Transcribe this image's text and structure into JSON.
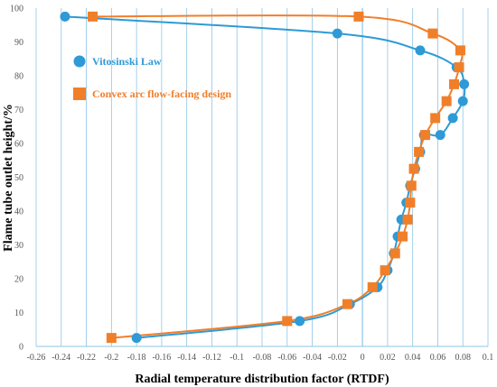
{
  "chart_data": {
    "type": "scatter",
    "title": "",
    "xlabel": "Radial temperature distribution factor (RTDF)",
    "ylabel": "Flame tube outlet height/%",
    "xlim": [
      -0.26,
      0.1
    ],
    "ylim": [
      0,
      100
    ],
    "x_ticks": [
      -0.26,
      -0.24,
      -0.22,
      -0.2,
      -0.18,
      -0.16,
      -0.14,
      -0.12,
      -0.1,
      -0.08,
      -0.06,
      -0.04,
      -0.02,
      0,
      0.02,
      0.04,
      0.06,
      0.08,
      0.1
    ],
    "x_tick_labels": [
      "-0.26",
      "-0.24",
      "-0.22",
      "-0.2",
      "-0.18",
      "-0.16",
      "-0.14",
      "-0.12",
      "-0.1",
      "-0.08",
      "-0.06",
      "-0.04",
      "-0.02",
      "0",
      "0.02",
      "0.04",
      "0.06",
      "0.08",
      "0.1"
    ],
    "y_ticks": [
      0,
      10,
      20,
      30,
      40,
      50,
      60,
      70,
      80,
      90,
      100
    ],
    "y_tick_labels": [
      "0",
      "10",
      "20",
      "30",
      "40",
      "50",
      "60",
      "70",
      "80",
      "90",
      "100"
    ],
    "grid": "vertical",
    "legend_position": "left",
    "series": [
      {
        "name": "Vitosinski Law",
        "marker": "circle",
        "color": "#2e9ad6",
        "x": [
          -0.18,
          -0.05,
          -0.01,
          0.012,
          0.02,
          0.025,
          0.028,
          0.031,
          0.035,
          0.038,
          0.042,
          0.046,
          0.049,
          0.062,
          0.072,
          0.08,
          0.081,
          0.075,
          0.046,
          -0.02,
          -0.237
        ],
        "y": [
          2.5,
          7.5,
          12.5,
          17.5,
          22.5,
          27.5,
          32.5,
          37.5,
          42.5,
          47.5,
          52.5,
          57.5,
          62.5,
          62.5,
          67.5,
          72.5,
          77.5,
          82.5,
          87.5,
          92.5,
          97.5
        ]
      },
      {
        "name": "Convex arc flow-facing design",
        "marker": "square",
        "color": "#f07f2a",
        "x": [
          -0.2,
          -0.06,
          -0.012,
          0.008,
          0.018,
          0.026,
          0.032,
          0.036,
          0.038,
          0.039,
          0.041,
          0.045,
          0.05,
          0.058,
          0.067,
          0.073,
          0.077,
          0.078,
          0.056,
          -0.003,
          -0.215
        ],
        "y": [
          2.5,
          7.5,
          12.5,
          17.5,
          22.5,
          27.5,
          32.5,
          37.5,
          42.5,
          47.5,
          52.5,
          57.5,
          62.5,
          67.5,
          72.5,
          77.5,
          82.5,
          87.5,
          92.5,
          97.5,
          97.5
        ]
      }
    ]
  }
}
